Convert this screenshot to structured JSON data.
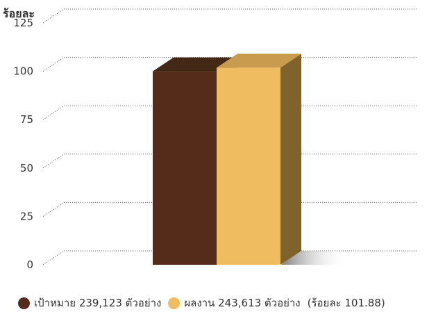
{
  "chart_data": {
    "type": "bar",
    "ylabel": "ร้อยละ",
    "ylim": [
      0,
      125
    ],
    "yticks": [
      "0",
      "25",
      "50",
      "75",
      "100",
      "125"
    ],
    "grid": true,
    "series": [
      {
        "name": "เป้าหมาย",
        "value": 100,
        "count_label": "239,123 ตัวอย่าง",
        "color": "#552b19",
        "top_color": "#432815",
        "side_color": "#3a2214"
      },
      {
        "name": "ผลงาน",
        "value": 101.88,
        "count_label": "243,613 ตัวอย่าง",
        "color": "#efbc5f",
        "top_color": "#c99b4e",
        "side_color": "#80632c"
      }
    ],
    "legend_note": "(ร้อยละ 101.88)",
    "legend_position": "bottom"
  }
}
